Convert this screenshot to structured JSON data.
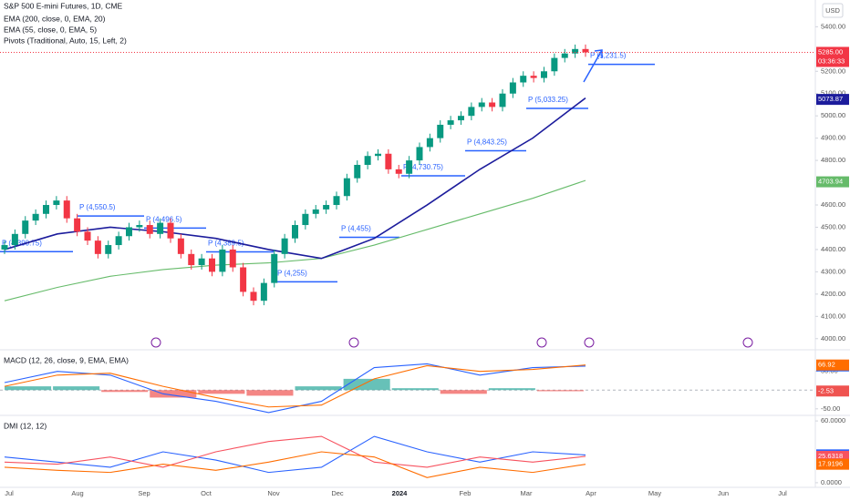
{
  "chart_data": [
    {
      "type": "candlestick",
      "title": "S&P 500 E-mini Futures, 1D, CME",
      "currency": "USD",
      "months": [
        "Jul",
        "Aug",
        "Sep",
        "Oct",
        "Nov",
        "Dec",
        "2024",
        "Feb",
        "Mar",
        "Apr",
        "May",
        "Jun",
        "Jul"
      ],
      "open": [
        4400,
        4420,
        4470,
        4530,
        4560,
        4600,
        4620,
        4540,
        4480,
        4440,
        4380,
        4420,
        4460,
        4500,
        4510,
        4470,
        4520,
        4450,
        4380,
        4330,
        4360,
        4300,
        4400,
        4320,
        4210,
        4170,
        4250,
        4380,
        4450,
        4510,
        4560,
        4580,
        4600,
        4640,
        4720,
        4780,
        4820,
        4830,
        4760,
        4740,
        4800,
        4860,
        4900,
        4960,
        4980,
        5000,
        5040,
        5060,
        5040,
        5100,
        5150,
        5180,
        5170,
        5200,
        5260,
        5280,
        5300
      ],
      "high": [
        4440,
        4490,
        4550,
        4580,
        4620,
        4640,
        4640,
        4560,
        4500,
        4460,
        4440,
        4480,
        4520,
        4530,
        4530,
        4540,
        4540,
        4470,
        4400,
        4380,
        4380,
        4420,
        4420,
        4340,
        4230,
        4270,
        4400,
        4470,
        4530,
        4580,
        4600,
        4620,
        4660,
        4740,
        4800,
        4840,
        4850,
        4850,
        4780,
        4820,
        4880,
        4920,
        4980,
        5000,
        5020,
        5060,
        5080,
        5080,
        5120,
        5170,
        5200,
        5200,
        5220,
        5280,
        5300,
        5320,
        5320
      ],
      "low": [
        4380,
        4400,
        4450,
        4510,
        4540,
        4580,
        4520,
        4460,
        4420,
        4360,
        4360,
        4400,
        4440,
        4480,
        4450,
        4450,
        4430,
        4360,
        4310,
        4310,
        4280,
        4280,
        4300,
        4190,
        4150,
        4150,
        4230,
        4360,
        4430,
        4490,
        4540,
        4560,
        4580,
        4620,
        4700,
        4760,
        4800,
        4740,
        4720,
        4720,
        4780,
        4840,
        4880,
        4940,
        4960,
        4980,
        5020,
        5020,
        5020,
        5080,
        5130,
        5150,
        5150,
        5180,
        5240,
        5260,
        5265
      ],
      "close": [
        4420,
        4470,
        4530,
        4560,
        4600,
        4620,
        4540,
        4480,
        4440,
        4380,
        4420,
        4460,
        4500,
        4510,
        4470,
        4520,
        4450,
        4380,
        4330,
        4360,
        4300,
        4400,
        4320,
        4210,
        4170,
        4250,
        4380,
        4450,
        4510,
        4560,
        4580,
        4600,
        4640,
        4720,
        4780,
        4820,
        4830,
        4760,
        4740,
        4800,
        4860,
        4900,
        4960,
        4980,
        5000,
        5040,
        5060,
        5040,
        5100,
        5150,
        5180,
        5170,
        5200,
        5260,
        5280,
        5300,
        5285
      ],
      "up_color": "#089981",
      "down_color": "#f23645",
      "last": {
        "value": 5285,
        "label": "5285.00"
      },
      "countdown": "03:36:33",
      "series": [
        {
          "name": "EMA (200, close, 0, EMA, 20)",
          "color": "#66bb6a",
          "values": [
            4170,
            4230,
            4280,
            4310,
            4330,
            4340,
            4360,
            4420,
            4490,
            4560,
            4630,
            4710
          ],
          "tag": {
            "value": 4703.94,
            "label": "4703.94"
          }
        },
        {
          "name": "EMA (55, close, 0, EMA, 5)",
          "color": "#1c1c9c",
          "values": [
            4400,
            4470,
            4500,
            4480,
            4450,
            4400,
            4360,
            4450,
            4600,
            4760,
            4900,
            5080
          ],
          "tag": {
            "value": 5073.87,
            "label": "5073.87"
          }
        }
      ],
      "pivots": {
        "name": "Pivots (Traditional, Auto, 15, Left, 2)",
        "color": "#2962ff",
        "levels": [
          {
            "label": "P (4,390.75)",
            "value": 4390.75
          },
          {
            "label": "P (4,550.5)",
            "value": 4550.5
          },
          {
            "label": "P (4,496.5)",
            "value": 4496.5
          },
          {
            "label": "P (4,389.5)",
            "value": 4389.5
          },
          {
            "label": "P (4,255)",
            "value": 4255
          },
          {
            "label": "P (4,455)",
            "value": 4455
          },
          {
            "label": "P (4,730.75)",
            "value": 4730.75
          },
          {
            "label": "P (4,843.25)",
            "value": 4843.25
          },
          {
            "label": "P (5,033.25)",
            "value": 5033.25
          },
          {
            "label": "P (5,231.5)",
            "value": 5231.5
          }
        ]
      },
      "ylim": [
        3950,
        5520
      ],
      "yticks": [
        {
          "value": 5400,
          "label": "5400.00"
        },
        {
          "value": 5200,
          "label": "5200.00"
        },
        {
          "value": 5100,
          "label": "5100.00"
        },
        {
          "value": 5000,
          "label": "5000.00"
        },
        {
          "value": 4900,
          "label": "4900.00"
        },
        {
          "value": 4800,
          "label": "4800.00"
        },
        {
          "value": 4600,
          "label": "4600.00"
        },
        {
          "value": 4500,
          "label": "4500.00"
        },
        {
          "value": 4400,
          "label": "4400.00"
        },
        {
          "value": 4300,
          "label": "4300.00"
        },
        {
          "value": 4200,
          "label": "4200.00"
        },
        {
          "value": 4100,
          "label": "4100.00"
        },
        {
          "value": 4000,
          "label": "4000.00"
        }
      ]
    },
    {
      "type": "line",
      "title": "MACD (12, 26, close, 9, EMA, EMA)",
      "histogram": {
        "values": [
          10,
          10,
          -5,
          -20,
          -10,
          -15,
          10,
          30,
          5,
          -10,
          5,
          -3
        ],
        "up_color": "#26a69a",
        "down_color": "#ef5350",
        "tag": {
          "value": -2.53,
          "label": "-2.53"
        }
      },
      "series": [
        {
          "color": "#2962ff",
          "values": [
            20,
            50,
            40,
            -10,
            -30,
            -60,
            -30,
            60,
            70,
            40,
            60,
            64
          ],
          "tag": {
            "value": 64.39,
            "label": "64.39"
          }
        },
        {
          "color": "#ff6d00",
          "values": [
            10,
            40,
            45,
            10,
            -20,
            -45,
            -40,
            30,
            65,
            50,
            55,
            67
          ],
          "tag": {
            "value": 66.92,
            "label": "66.92"
          }
        }
      ],
      "ylim": [
        -67.5,
        107.5
      ],
      "yticks": [
        {
          "value": 50,
          "label": "50.00"
        },
        {
          "value": -50,
          "label": "-50.00"
        }
      ]
    },
    {
      "type": "line",
      "title": "DMI (12, 12)",
      "series": [
        {
          "color": "#2962ff",
          "values": [
            25,
            20,
            15,
            30,
            22,
            10,
            15,
            45,
            30,
            20,
            30,
            27
          ],
          "tag": {
            "value": 27.063,
            "label": "27.0630"
          }
        },
        {
          "color": "#f7525f",
          "values": [
            20,
            18,
            25,
            15,
            30,
            40,
            45,
            20,
            15,
            25,
            20,
            25.6
          ],
          "tag": {
            "value": 25.6318,
            "label": "25.6318"
          }
        },
        {
          "color": "#ff6d00",
          "values": [
            15,
            12,
            10,
            18,
            12,
            20,
            30,
            25,
            5,
            15,
            10,
            17.9
          ],
          "tag": {
            "value": 17.9196,
            "label": "17.9196"
          }
        }
      ],
      "ylim": [
        -4.5,
        65.4
      ],
      "yticks": [
        {
          "value": 60,
          "label": "60.0000"
        },
        {
          "value": 0,
          "label": "0.0000"
        }
      ]
    }
  ]
}
